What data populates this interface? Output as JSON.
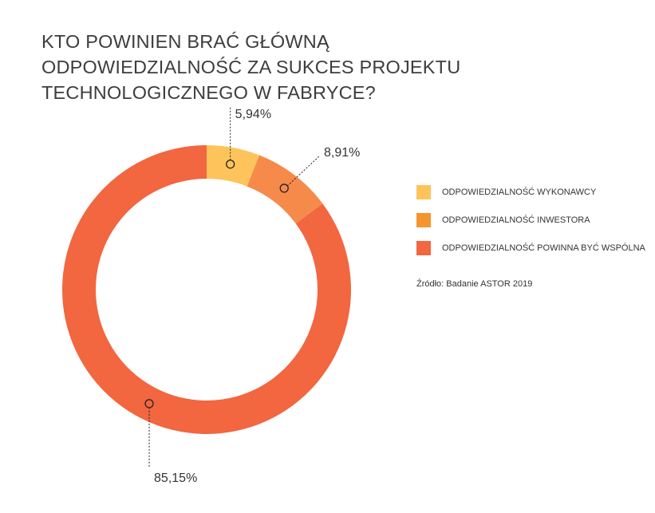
{
  "chart_data": {
    "type": "donut",
    "title_lines": [
      "KTO POWINIEN BRAĆ GŁÓWNĄ",
      "ODPOWIEDZIALNOŚĆ ZA SUKCES PROJEKTU",
      "TECHNOLOGICZNEGO W FABRYCE?"
    ],
    "categories": [
      "ODPOWIEDZIALNOŚĆ WYKONAWCY",
      "ODPOWIEDZIALNOŚĆ INWESTORA",
      "ODPOWIEDZIALNOŚĆ POWINNA BYĆ WSPÓLNA"
    ],
    "values": [
      5.94,
      8.91,
      85.15
    ],
    "data_labels": [
      "5,94%",
      "8,91%",
      "85,15%"
    ],
    "colors": [
      "#fdc45c",
      "#f58a4b",
      "#f26640"
    ],
    "legend_colors": [
      "#fdc45c",
      "#f5952e",
      "#f26640"
    ],
    "legend_position": "right",
    "source": "Źródło: Badanie ASTOR 2019"
  }
}
